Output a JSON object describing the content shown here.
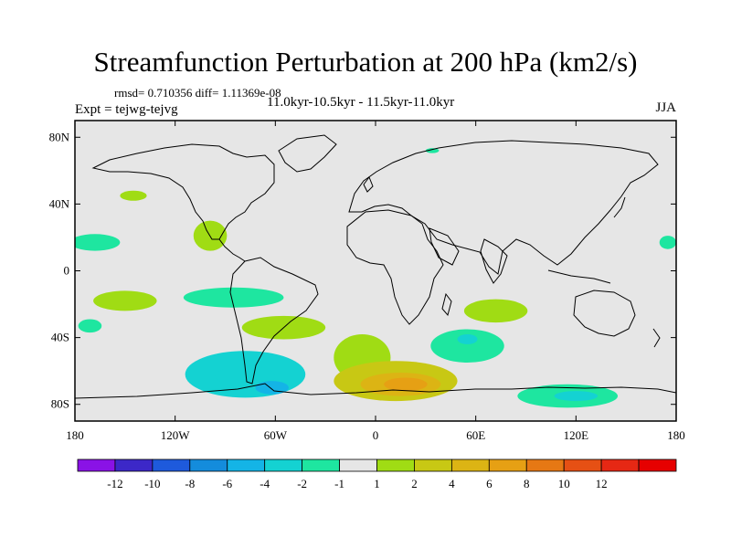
{
  "title": "Streamfunction Perturbation at 200 hPa (km2/s)",
  "stats": "rmsd= 0.710356 diff= 1.11369e-08",
  "experiment": "Expt = tejwg-tejvg",
  "period": "11.0kyr-10.5kyr - 11.5kyr-11.0kyr",
  "season": "JJA",
  "map": {
    "projection": "cylindrical-equidistant",
    "lon_range": [
      -180,
      180
    ],
    "lat_range": [
      -90,
      90
    ],
    "x_ticks": [
      {
        "lon": -180,
        "label": "180"
      },
      {
        "lon": -120,
        "label": "120W"
      },
      {
        "lon": -60,
        "label": "60W"
      },
      {
        "lon": 0,
        "label": "0"
      },
      {
        "lon": 60,
        "label": "60E"
      },
      {
        "lon": 120,
        "label": "120E"
      },
      {
        "lon": 180,
        "label": "180"
      }
    ],
    "y_ticks": [
      {
        "lat": 80,
        "label": "80N"
      },
      {
        "lat": 40,
        "label": "40N"
      },
      {
        "lat": 0,
        "label": "0"
      },
      {
        "lat": -40,
        "label": "40S"
      },
      {
        "lat": -80,
        "label": "80S"
      }
    ],
    "background_color": "#e6e6e6",
    "anomalies": [
      {
        "lon": -145,
        "lat": 45,
        "rx": 8,
        "ry": 3,
        "value": 1.5
      },
      {
        "lon": -99,
        "lat": 21,
        "rx": 10,
        "ry": 9,
        "value": 1.5
      },
      {
        "lon": -168,
        "lat": 17,
        "rx": 15,
        "ry": 5,
        "value": -1.5
      },
      {
        "lon": -150,
        "lat": -18,
        "rx": 19,
        "ry": 6,
        "value": 1.5
      },
      {
        "lon": -171,
        "lat": -33,
        "rx": 7,
        "ry": 4,
        "value": -1.5
      },
      {
        "lon": -85,
        "lat": -16,
        "rx": 30,
        "ry": 6,
        "value": -1.5
      },
      {
        "lon": -78,
        "lat": -62,
        "rx": 36,
        "ry": 14,
        "value": -2.5
      },
      {
        "lon": -78,
        "lat": -63,
        "rx": 18,
        "ry": 6,
        "value": -3.5
      },
      {
        "lon": -62,
        "lat": -70,
        "rx": 10,
        "ry": 4,
        "value": -4.5
      },
      {
        "lon": -55,
        "lat": -34,
        "rx": 25,
        "ry": 7,
        "value": 1.5
      },
      {
        "lon": -8,
        "lat": -52,
        "rx": 17,
        "ry": 14,
        "value": 1.5
      },
      {
        "lon": 12,
        "lat": -66,
        "rx": 37,
        "ry": 12,
        "value": 2.5
      },
      {
        "lon": 15,
        "lat": -68,
        "rx": 24,
        "ry": 7,
        "value": 4.5
      },
      {
        "lon": 18,
        "lat": -68,
        "rx": 13,
        "ry": 4,
        "value": 6.5
      },
      {
        "lon": 72,
        "lat": -24,
        "rx": 19,
        "ry": 7,
        "value": 1.5
      },
      {
        "lon": 55,
        "lat": -45,
        "rx": 22,
        "ry": 10,
        "value": -1.5
      },
      {
        "lon": 55,
        "lat": -41,
        "rx": 6,
        "ry": 3,
        "value": -2.5
      },
      {
        "lon": 115,
        "lat": -75,
        "rx": 30,
        "ry": 7,
        "value": -1.5
      },
      {
        "lon": 120,
        "lat": -75,
        "rx": 13,
        "ry": 3,
        "value": -2.5
      },
      {
        "lon": 175,
        "lat": 17,
        "rx": 5,
        "ry": 4,
        "value": -1.5
      },
      {
        "lon": 34,
        "lat": 72,
        "rx": 4,
        "ry": 1.5,
        "value": -1.5
      }
    ]
  },
  "colorbar": {
    "colors": [
      "#8a12e6",
      "#3c28c8",
      "#1e5adc",
      "#148cdc",
      "#14b4e6",
      "#14d2d2",
      "#1ee6a0",
      "#e6e6e6",
      "#a0dc14",
      "#c8c814",
      "#dcb414",
      "#e6a014",
      "#e67814",
      "#e65014",
      "#e62814",
      "#e60000"
    ],
    "labels": [
      "-12",
      "-10",
      "-8",
      "-6",
      "-4",
      "-2",
      "-1",
      "1",
      "2",
      "4",
      "6",
      "8",
      "10",
      "12"
    ]
  }
}
